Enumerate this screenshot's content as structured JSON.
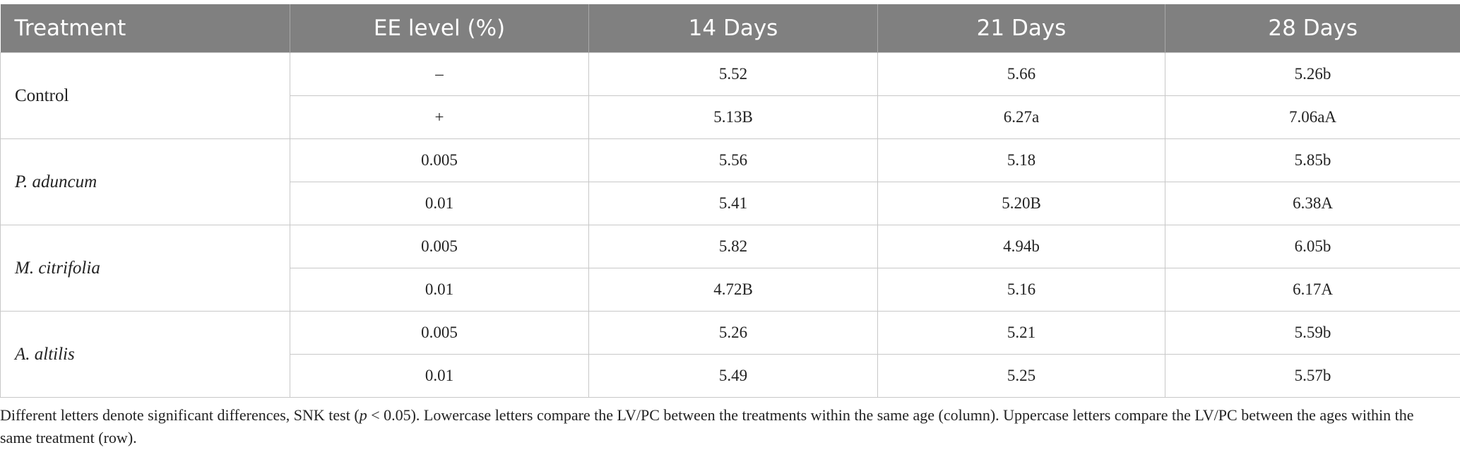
{
  "table": {
    "header": [
      "Treatment",
      "EE level (%)",
      "14 Days",
      "21 Days",
      "28 Days"
    ],
    "groups": [
      {
        "treatment": "Control",
        "rows": [
          {
            "level": "–",
            "values": [
              "5.52",
              "5.66",
              "5.26b"
            ]
          },
          {
            "level": "+",
            "values": [
              "5.13B",
              "6.27a",
              "7.06aA"
            ]
          }
        ]
      },
      {
        "treatment": "P. aduncum",
        "rows": [
          {
            "level": "0.005",
            "values": [
              "5.56",
              "5.18",
              "5.85b"
            ]
          },
          {
            "level": "0.01",
            "values": [
              "5.41",
              "5.20B",
              "6.38A"
            ]
          }
        ]
      },
      {
        "treatment": "M. citrifolia",
        "rows": [
          {
            "level": "0.005",
            "values": [
              "5.82",
              "4.94b",
              "6.05b"
            ]
          },
          {
            "level": "0.01",
            "values": [
              "4.72B",
              "5.16",
              "6.17A"
            ]
          }
        ]
      },
      {
        "treatment": "A. altilis",
        "rows": [
          {
            "level": "0.005",
            "values": [
              "5.26",
              "5.21",
              "5.59b"
            ]
          },
          {
            "level": "0.01",
            "values": [
              "5.49",
              "5.25",
              "5.57b"
            ]
          }
        ]
      }
    ]
  },
  "footnote": {
    "before": "Different letters denote significant differences, SNK test (",
    "italic": "p",
    "after": " < 0.05). Lowercase letters compare the LV/PC between the treatments within the same age (column). Uppercase letters compare the LV/PC between the ages within the same treatment (row)."
  }
}
